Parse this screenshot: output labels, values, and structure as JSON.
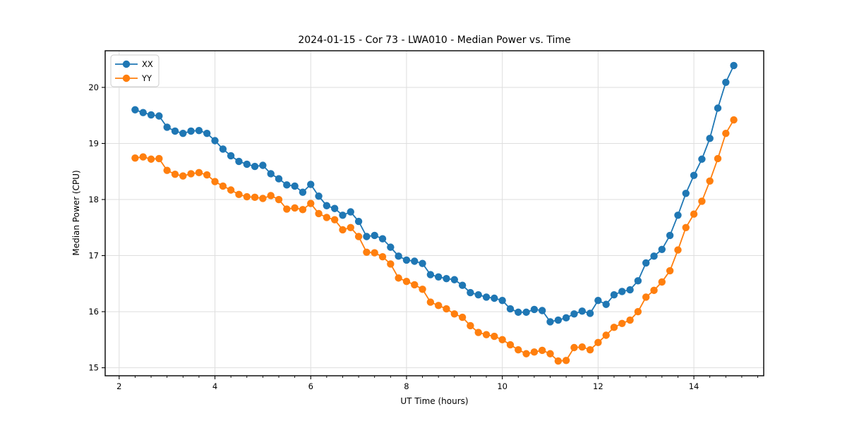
{
  "chart_data": {
    "type": "line",
    "title": "2024-01-15 - Cor 73 - LWA010 - Median Power vs. Time",
    "xlabel": "UT Time (hours)",
    "ylabel": "Median Power (CPU)",
    "xlim": [
      1.708,
      15.458
    ],
    "ylim": [
      14.857,
      20.653
    ],
    "xticks": [
      2,
      4,
      6,
      8,
      10,
      12,
      14
    ],
    "yticks": [
      15,
      16,
      17,
      18,
      19,
      20
    ],
    "x_minor_step": 0.33333,
    "grid": true,
    "legend_position": "upper-left",
    "marker": "circle",
    "x": [
      2.333,
      2.5,
      2.667,
      2.833,
      3.0,
      3.167,
      3.333,
      3.5,
      3.667,
      3.833,
      4.0,
      4.167,
      4.333,
      4.5,
      4.667,
      4.833,
      5.0,
      5.167,
      5.333,
      5.5,
      5.667,
      5.833,
      6.0,
      6.167,
      6.333,
      6.5,
      6.667,
      6.833,
      7.0,
      7.167,
      7.333,
      7.5,
      7.667,
      7.833,
      8.0,
      8.167,
      8.333,
      8.5,
      8.667,
      8.833,
      9.0,
      9.167,
      9.333,
      9.5,
      9.667,
      9.833,
      10.0,
      10.167,
      10.333,
      10.5,
      10.667,
      10.833,
      11.0,
      11.167,
      11.333,
      11.5,
      11.667,
      11.833,
      12.0,
      12.167,
      12.333,
      12.5,
      12.667,
      12.833,
      13.0,
      13.167,
      13.333,
      13.5,
      13.667,
      13.833,
      14.0,
      14.167,
      14.333,
      14.5,
      14.667,
      14.833
    ],
    "series": [
      {
        "name": "XX",
        "color": "#1f77b4",
        "values": [
          19.6,
          19.55,
          19.51,
          19.49,
          19.29,
          19.22,
          19.18,
          19.22,
          19.23,
          19.18,
          19.05,
          18.9,
          18.78,
          18.68,
          18.63,
          18.59,
          18.61,
          18.46,
          18.37,
          18.26,
          18.24,
          18.13,
          18.27,
          18.06,
          17.89,
          17.84,
          17.72,
          17.78,
          17.61,
          17.34,
          17.36,
          17.3,
          17.15,
          16.99,
          16.92,
          16.9,
          16.86,
          16.66,
          16.62,
          16.59,
          16.57,
          16.47,
          16.34,
          16.3,
          16.26,
          16.24,
          16.2,
          16.05,
          15.99,
          15.99,
          16.04,
          16.02,
          15.82,
          15.85,
          15.89,
          15.96,
          16.01,
          15.97,
          16.2,
          16.13,
          16.3,
          16.36,
          16.39,
          16.55,
          16.87,
          16.99,
          17.11,
          17.36,
          17.72,
          18.11,
          18.43,
          18.72,
          19.09,
          19.63,
          20.09,
          20.39
        ]
      },
      {
        "name": "YY",
        "color": "#ff7f0e",
        "values": [
          18.74,
          18.76,
          18.72,
          18.73,
          18.52,
          18.45,
          18.42,
          18.46,
          18.48,
          18.44,
          18.32,
          18.24,
          18.17,
          18.09,
          18.05,
          18.04,
          18.02,
          18.07,
          18.0,
          17.83,
          17.85,
          17.82,
          17.93,
          17.75,
          17.68,
          17.64,
          17.46,
          17.5,
          17.34,
          17.06,
          17.05,
          16.98,
          16.85,
          16.6,
          16.54,
          16.48,
          16.4,
          16.17,
          16.11,
          16.05,
          15.96,
          15.9,
          15.75,
          15.63,
          15.59,
          15.56,
          15.5,
          15.41,
          15.32,
          15.25,
          15.28,
          15.31,
          15.25,
          15.12,
          15.13,
          15.36,
          15.37,
          15.32,
          15.45,
          15.58,
          15.72,
          15.79,
          15.85,
          16.0,
          16.26,
          16.38,
          16.53,
          16.73,
          17.1,
          17.5,
          17.74,
          17.97,
          18.33,
          18.73,
          19.18,
          19.42
        ]
      }
    ],
    "style": {
      "grid_color": "#dedede",
      "spine_color": "#000000",
      "tick_label_color": "#000000",
      "legend_border_color": "#cccccc"
    }
  }
}
